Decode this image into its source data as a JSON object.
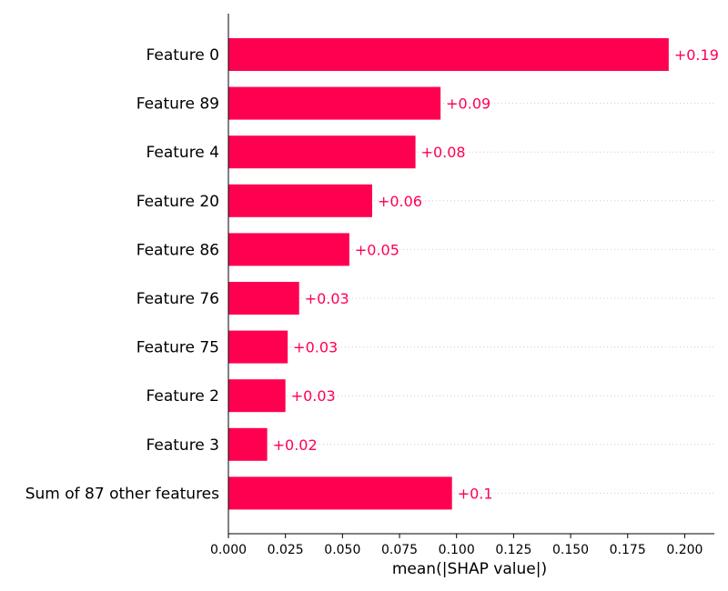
{
  "chart_data": {
    "type": "bar",
    "orientation": "horizontal",
    "categories": [
      "Feature 0",
      "Feature 89",
      "Feature 4",
      "Feature 20",
      "Feature 86",
      "Feature 76",
      "Feature 75",
      "Feature 2",
      "Feature 3",
      "Sum of 87 other features"
    ],
    "values": [
      0.193,
      0.093,
      0.082,
      0.063,
      0.053,
      0.031,
      0.026,
      0.025,
      0.017,
      0.098
    ],
    "value_labels": [
      "+0.19",
      "+0.09",
      "+0.08",
      "+0.06",
      "+0.05",
      "+0.03",
      "+0.03",
      "+0.03",
      "+0.02",
      "+0.1"
    ],
    "xlabel": "mean(|SHAP value|)",
    "xlim": [
      0,
      0.213
    ],
    "xticks": [
      0.0,
      0.025,
      0.05,
      0.075,
      0.1,
      0.125,
      0.15,
      0.175,
      0.2
    ],
    "xtick_labels": [
      "0.000",
      "0.025",
      "0.050",
      "0.075",
      "0.100",
      "0.125",
      "0.150",
      "0.175",
      "0.200"
    ],
    "grid": "dotted row guides",
    "bar_color": "#ff0051",
    "label_color": "#ff0051",
    "guide_color": "#cccccc"
  }
}
